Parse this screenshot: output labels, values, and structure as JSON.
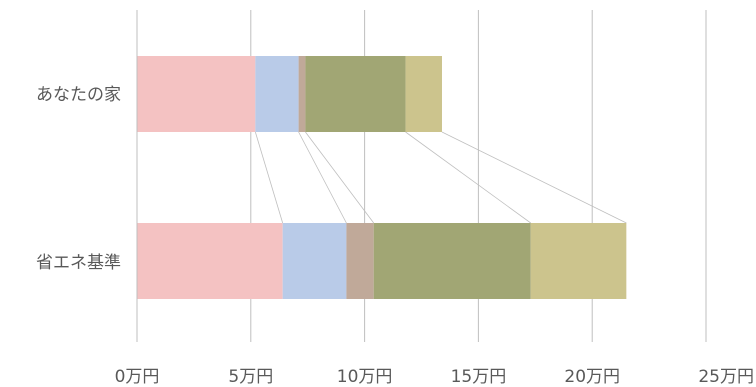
{
  "chart_data": {
    "type": "bar",
    "orientation": "horizontal",
    "stacked": true,
    "categories": [
      "あなたの家",
      "省エネ基準"
    ],
    "series": [
      {
        "color": "#f4c2c2",
        "values": [
          5.2,
          6.4
        ]
      },
      {
        "color": "#b9cbe8",
        "values": [
          1.9,
          2.8
        ]
      },
      {
        "color": "#c0a999",
        "values": [
          0.3,
          1.2
        ]
      },
      {
        "color": "#a1a674",
        "values": [
          4.4,
          6.9
        ]
      },
      {
        "color": "#ccc48d",
        "values": [
          1.6,
          4.2
        ]
      }
    ],
    "x_ticks": [
      "0万円",
      "5万円",
      "10万円",
      "15万円",
      "20万円",
      "25万円"
    ],
    "xlim": [
      0,
      25
    ],
    "grid": "vertical",
    "series_connector_lines": true,
    "legend": "none"
  }
}
